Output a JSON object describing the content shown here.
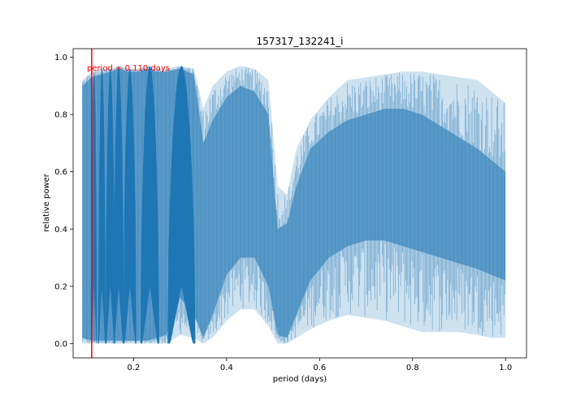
{
  "chart_data": {
    "type": "line",
    "title": "157317_132241_i",
    "xlabel": "period (days)",
    "ylabel": "relative power",
    "xlim": [
      0.07,
      1.045
    ],
    "ylim": [
      -0.05,
      1.03
    ],
    "xticks": [
      0.2,
      0.4,
      0.6,
      0.8,
      1.0
    ],
    "xtick_labels": [
      "0.2",
      "0.4",
      "0.6",
      "0.8",
      "1.0"
    ],
    "yticks": [
      0.0,
      0.2,
      0.4,
      0.6,
      0.8,
      1.0
    ],
    "ytick_labels": [
      "0.0",
      "0.2",
      "0.4",
      "0.6",
      "0.8",
      "1.0"
    ],
    "grid": false,
    "series_color": "#1f77b4",
    "marker_color": "#ff0000",
    "marker_period": 0.11,
    "annotation": "period = 0.110 days",
    "envelope": {
      "x": [
        0.09,
        0.11,
        0.13,
        0.15,
        0.17,
        0.19,
        0.21,
        0.23,
        0.25,
        0.27,
        0.3,
        0.33,
        0.35,
        0.37,
        0.4,
        0.43,
        0.46,
        0.49,
        0.51,
        0.53,
        0.55,
        0.58,
        0.62,
        0.66,
        0.7,
        0.74,
        0.78,
        0.82,
        0.86,
        0.9,
        0.94,
        0.97,
        1.0
      ],
      "upper": [
        0.92,
        0.95,
        0.96,
        0.96,
        0.97,
        0.96,
        0.96,
        0.97,
        0.96,
        0.96,
        0.97,
        0.96,
        0.82,
        0.9,
        0.95,
        0.97,
        0.96,
        0.92,
        0.55,
        0.52,
        0.68,
        0.78,
        0.86,
        0.92,
        0.93,
        0.94,
        0.95,
        0.95,
        0.94,
        0.93,
        0.92,
        0.88,
        0.84
      ],
      "dense_upper": [
        0.9,
        0.93,
        0.94,
        0.95,
        0.96,
        0.95,
        0.95,
        0.96,
        0.95,
        0.95,
        0.96,
        0.94,
        0.7,
        0.78,
        0.86,
        0.9,
        0.88,
        0.8,
        0.4,
        0.42,
        0.55,
        0.68,
        0.74,
        0.78,
        0.8,
        0.82,
        0.82,
        0.8,
        0.76,
        0.72,
        0.68,
        0.64,
        0.6
      ],
      "dense_lower": [
        0.02,
        0.01,
        0.01,
        0.01,
        0.01,
        0.01,
        0.01,
        0.01,
        0.02,
        0.03,
        0.16,
        0.1,
        0.02,
        0.1,
        0.24,
        0.3,
        0.3,
        0.2,
        0.03,
        0.02,
        0.1,
        0.22,
        0.3,
        0.34,
        0.36,
        0.36,
        0.34,
        0.32,
        0.3,
        0.28,
        0.26,
        0.24,
        0.22
      ],
      "lower": [
        0.0,
        0.0,
        0.0,
        0.0,
        0.0,
        0.0,
        0.0,
        0.0,
        0.0,
        0.0,
        0.03,
        0.02,
        0.0,
        0.02,
        0.08,
        0.12,
        0.12,
        0.06,
        0.0,
        0.0,
        0.02,
        0.05,
        0.08,
        0.1,
        0.09,
        0.08,
        0.06,
        0.04,
        0.04,
        0.04,
        0.03,
        0.02,
        0.02
      ]
    },
    "lobes": [
      {
        "center": 0.115,
        "halfwidth": 0.006,
        "top": 0.95
      },
      {
        "center": 0.132,
        "halfwidth": 0.008,
        "top": 0.96
      },
      {
        "center": 0.15,
        "halfwidth": 0.01,
        "top": 0.96
      },
      {
        "center": 0.168,
        "halfwidth": 0.011,
        "top": 0.97
      },
      {
        "center": 0.192,
        "halfwidth": 0.014,
        "top": 0.96
      },
      {
        "center": 0.235,
        "halfwidth": 0.02,
        "top": 0.97
      },
      {
        "center": 0.303,
        "halfwidth": 0.03,
        "top": 0.97
      }
    ]
  }
}
